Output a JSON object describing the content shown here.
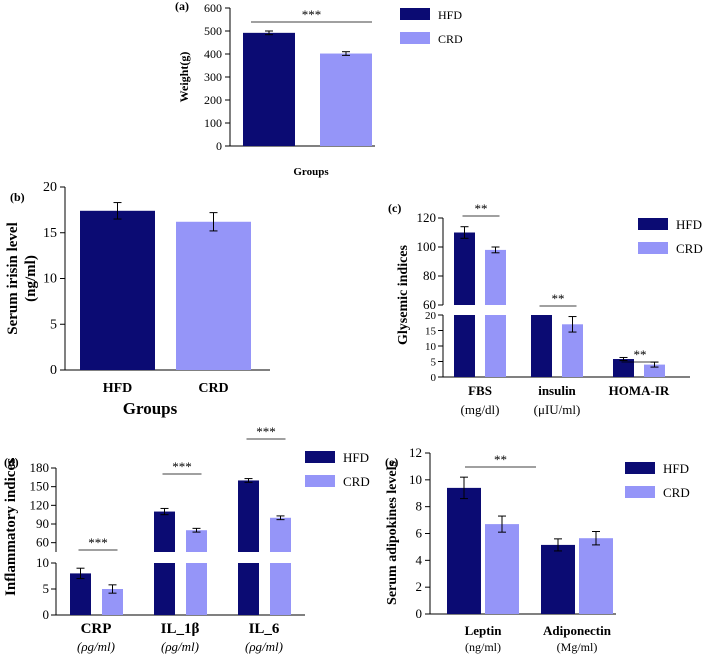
{
  "colors": {
    "HFD": "#0b0b73",
    "CRD": "#9595f8"
  },
  "chart_data": [
    {
      "panel": "(a)",
      "type": "bar",
      "categories": [
        "HFD",
        "CRD"
      ],
      "values": [
        492,
        402
      ],
      "errors": [
        8,
        8
      ],
      "ylabel": "Weight(g)",
      "xlabel": "Groups",
      "ylim": [
        0,
        600
      ],
      "yticks": [
        "0",
        "100",
        "200",
        "300",
        "400",
        "500",
        "600"
      ],
      "legend": [
        "HFD",
        "CRD"
      ],
      "legend_position": "right",
      "significance": [
        {
          "label": "***"
        }
      ]
    },
    {
      "panel": "(b)",
      "type": "bar",
      "categories": [
        "HFD",
        "CRD"
      ],
      "values": [
        17.4,
        16.2
      ],
      "errors": [
        0.9,
        1.0
      ],
      "ylabel": "Serum irisin level",
      "ylabel2": "(ng/ml)",
      "xlabel": "Groups",
      "ylim": [
        0,
        20
      ],
      "yticks": [
        "0",
        "5",
        "10",
        "15",
        "20"
      ]
    },
    {
      "panel": "(c)",
      "type": "bar",
      "categories": [
        "FBS",
        "insulin",
        "HOMA-IR"
      ],
      "category_units": [
        "(mg/dl)",
        "(μIU/ml)",
        ""
      ],
      "series": [
        {
          "name": "HFD",
          "values": [
            110,
            20,
            5.8
          ],
          "errors": [
            4,
            0,
            0.5
          ]
        },
        {
          "name": "CRD",
          "values": [
            98,
            17,
            4.0
          ],
          "errors": [
            2,
            2.5,
            0.8
          ]
        }
      ],
      "ylabel": "Glysemic indices",
      "axis_break": [
        20,
        60
      ],
      "yticks_lower": [
        "0",
        "5",
        "10",
        "15",
        "20"
      ],
      "yticks_upper": [
        "60",
        "80",
        "100",
        "120"
      ],
      "legend": [
        "HFD",
        "CRD"
      ],
      "legend_position": "top-right",
      "significance": [
        {
          "label": "**"
        },
        {
          "label": "**"
        },
        {
          "label": "**"
        }
      ]
    },
    {
      "panel": "(d)",
      "type": "bar",
      "categories": [
        "CRP",
        "IL_1β",
        "IL_6"
      ],
      "category_units": [
        "(ρg/ml)",
        "(ρg/ml)",
        "(ρg/ml)"
      ],
      "series": [
        {
          "name": "HFD",
          "values": [
            8,
            110,
            160
          ],
          "errors": [
            1,
            5,
            3
          ]
        },
        {
          "name": "CRD",
          "values": [
            5,
            80,
            100
          ],
          "errors": [
            0.8,
            3,
            3
          ]
        }
      ],
      "ylabel": "Inflammatory indices",
      "axis_break": [
        10,
        45
      ],
      "yticks_lower": [
        "0",
        "5",
        "10"
      ],
      "yticks_upper": [
        "60",
        "90",
        "120",
        "150",
        "180"
      ],
      "legend": [
        "HFD",
        "CRD"
      ],
      "legend_position": "top-right",
      "significance": [
        {
          "label": "***"
        },
        {
          "label": "***"
        },
        {
          "label": "***"
        }
      ]
    },
    {
      "panel": "(e)",
      "type": "bar",
      "categories": [
        "Leptin",
        "Adiponectin"
      ],
      "category_units": [
        "(ng/ml)",
        "(Mg/ml)"
      ],
      "series": [
        {
          "name": "HFD",
          "values": [
            9.4,
            5.15
          ],
          "errors": [
            0.8,
            0.45
          ]
        },
        {
          "name": "CRD",
          "values": [
            6.7,
            5.65
          ],
          "errors": [
            0.6,
            0.5
          ]
        }
      ],
      "ylabel": "Serum adipokines levels",
      "ylim": [
        0,
        12
      ],
      "yticks": [
        "0",
        "2",
        "4",
        "6",
        "8",
        "10",
        "12"
      ],
      "legend": [
        "HFD",
        "CRD"
      ],
      "legend_position": "top-right",
      "significance": [
        {
          "label": "**"
        }
      ]
    }
  ]
}
